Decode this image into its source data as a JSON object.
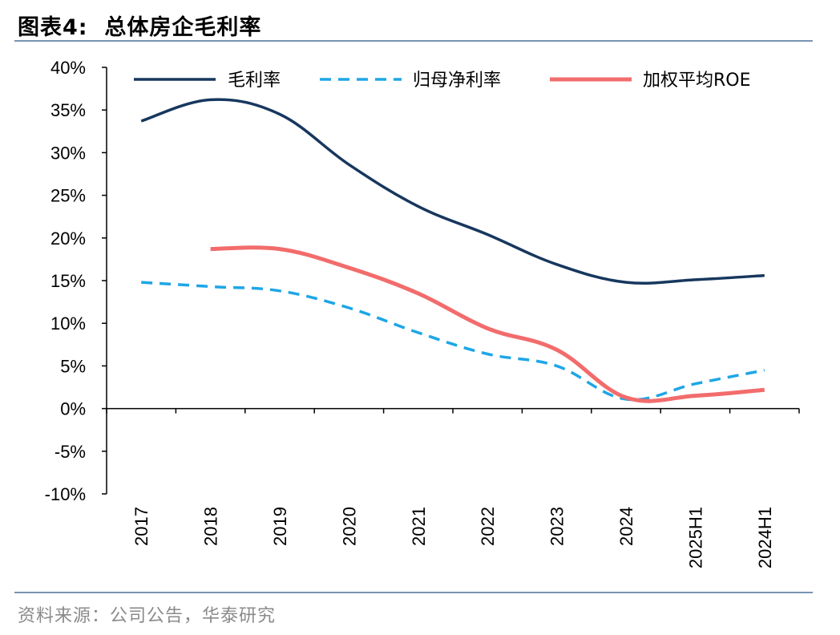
{
  "figure": {
    "title": "图表4:  总体房企毛利率",
    "source": "资料来源：公司公告，华泰研究"
  },
  "chart_data": {
    "type": "line",
    "title": "",
    "xlabel": "",
    "ylabel": "",
    "ylim": [
      -10,
      40
    ],
    "y_ticks": [
      "40%",
      "35%",
      "30%",
      "25%",
      "20%",
      "15%",
      "10%",
      "5%",
      "0%",
      "-5%",
      "-10%"
    ],
    "categories": [
      "2017",
      "2018",
      "2019",
      "2020",
      "2021",
      "2022",
      "2023",
      "2024",
      "2025H1",
      "2024H1"
    ],
    "legend_position": "top",
    "grid": false,
    "series": [
      {
        "name": "毛利率",
        "color": "#17375e",
        "style": "solid",
        "values": [
          33.7,
          36.2,
          34.5,
          28.6,
          23.7,
          20.4,
          16.9,
          14.8,
          15.1,
          15.6
        ]
      },
      {
        "name": "归母净利率",
        "color": "#1ea6e6",
        "style": "dashed",
        "values": [
          14.8,
          14.3,
          13.8,
          11.8,
          8.9,
          6.4,
          5.0,
          1.1,
          2.9,
          4.5
        ]
      },
      {
        "name": "加权平均ROE",
        "color": "#f26c6c",
        "style": "solid",
        "values": [
          null,
          18.7,
          18.7,
          16.5,
          13.5,
          9.4,
          6.9,
          1.3,
          1.5,
          2.2
        ]
      }
    ]
  }
}
